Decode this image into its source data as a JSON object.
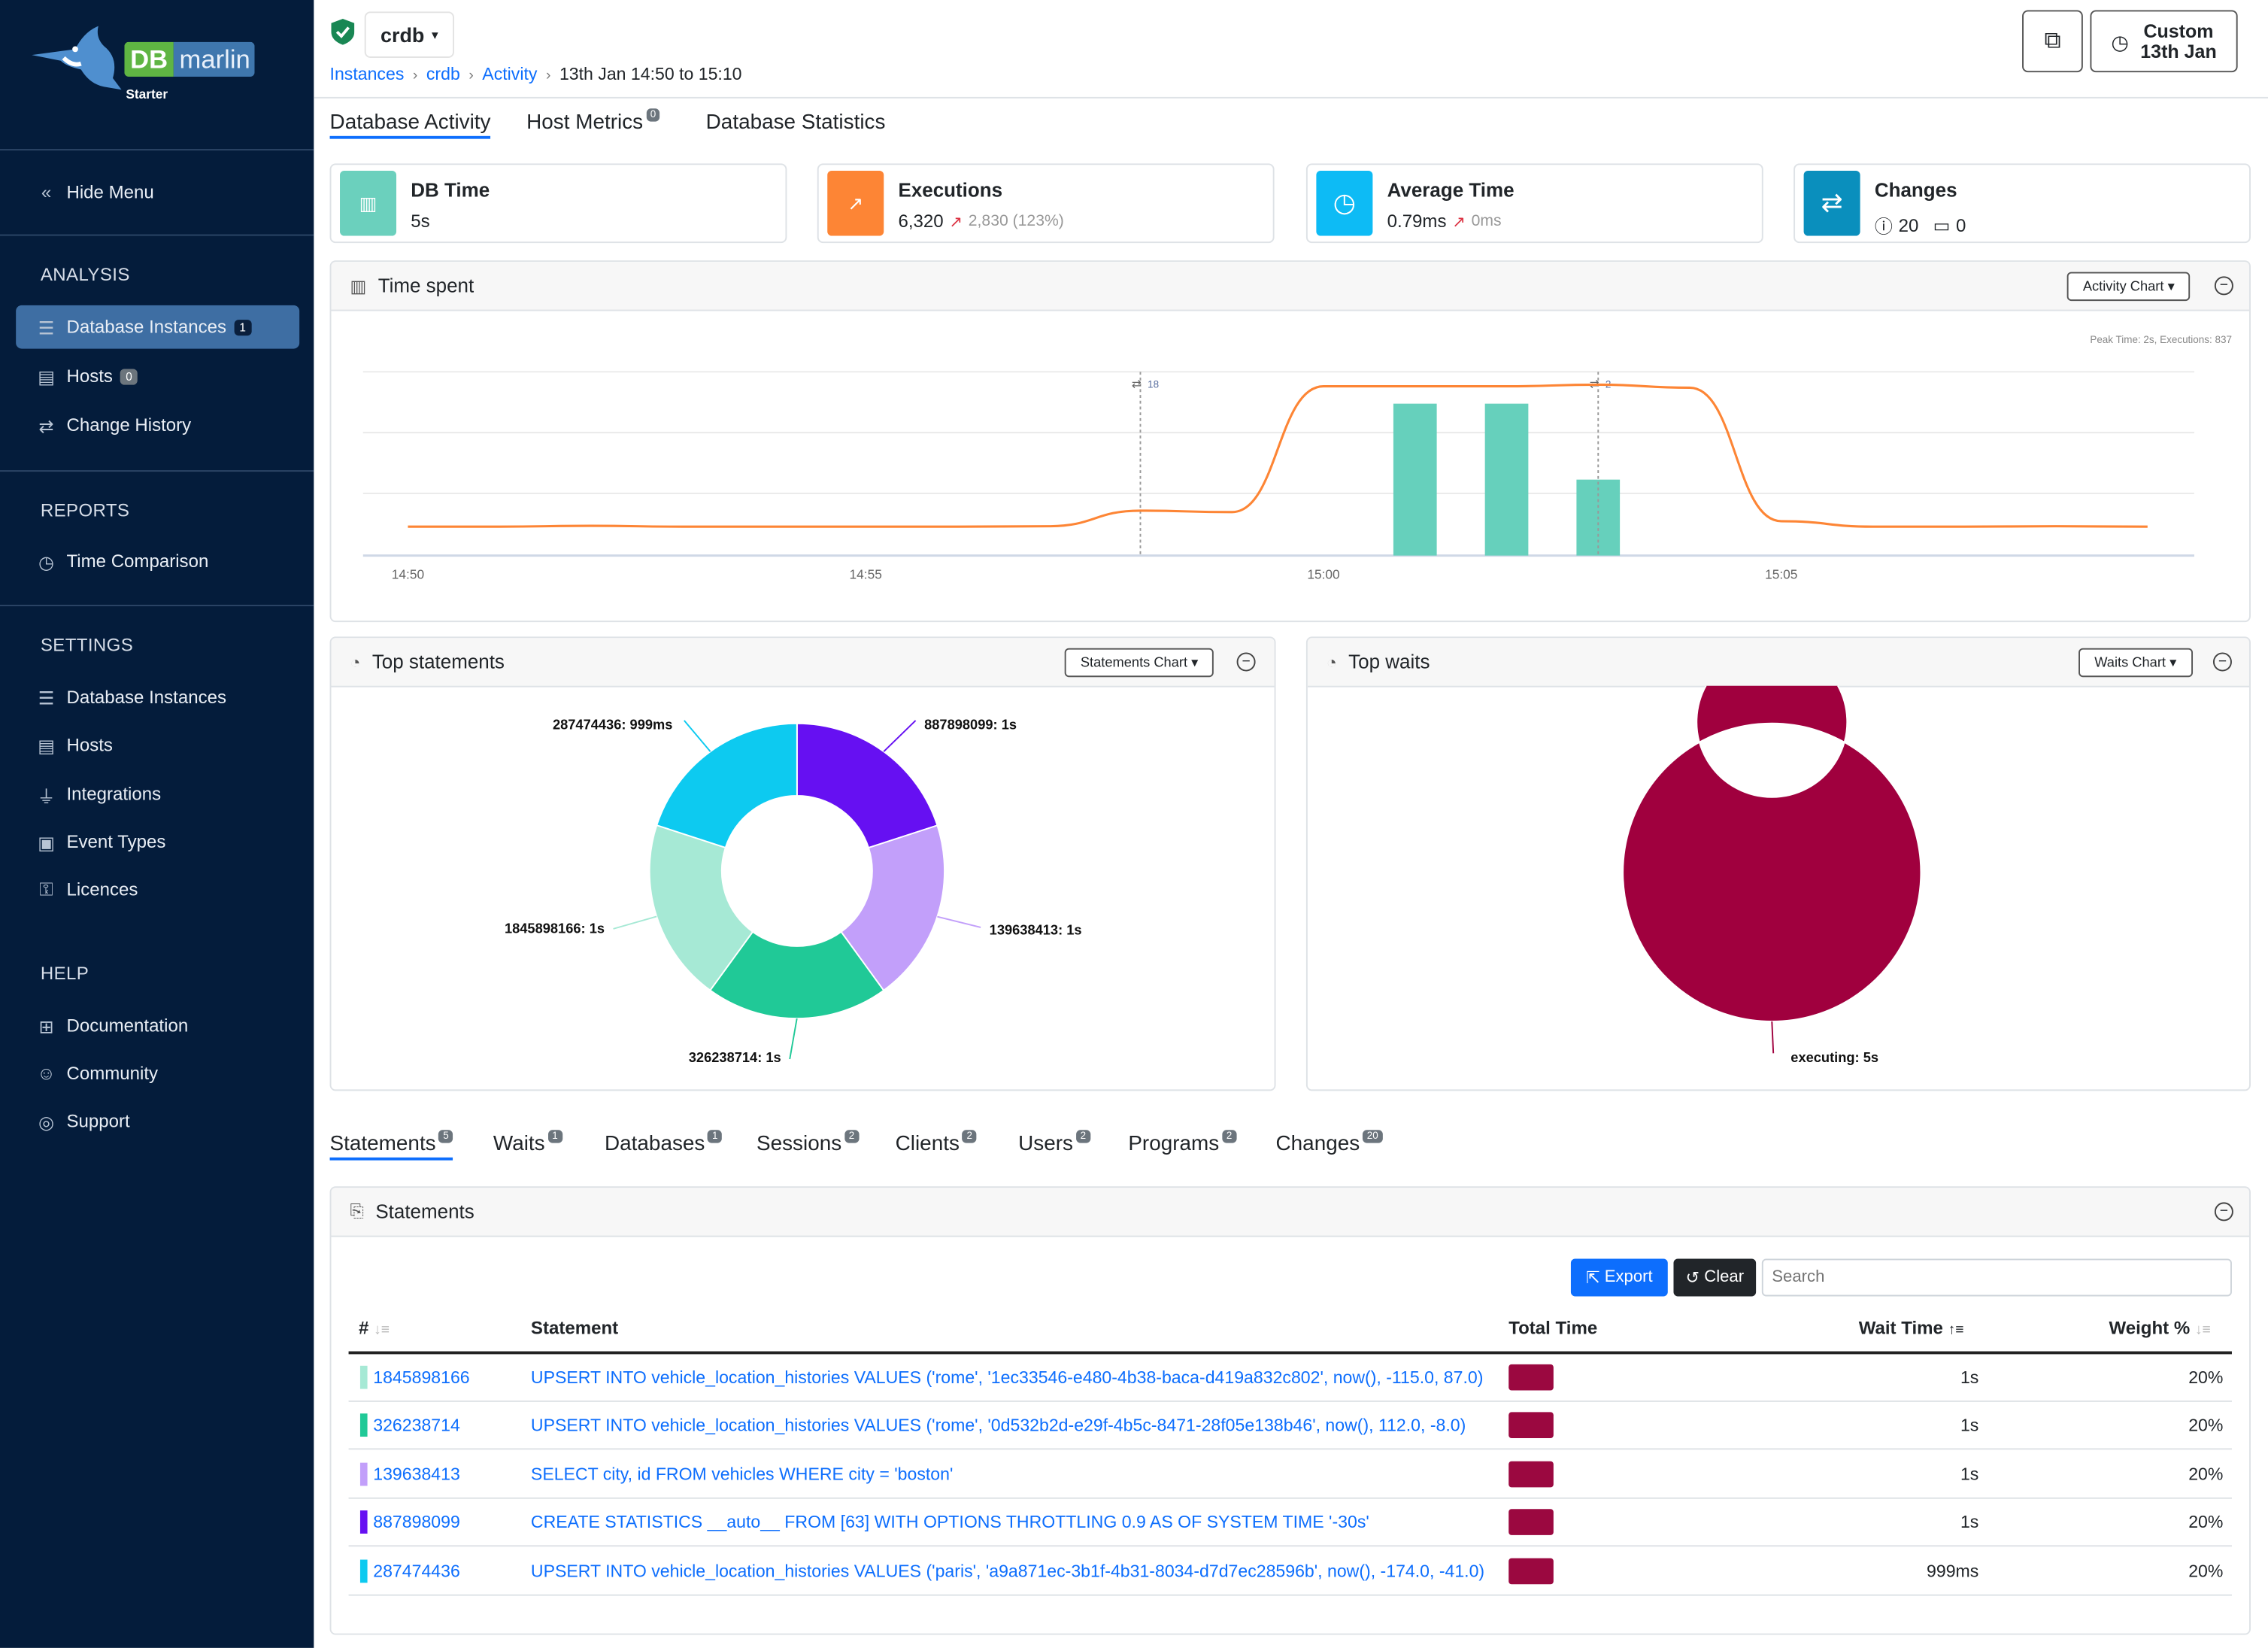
{
  "app": {
    "logo_left": "DB",
    "logo_right": "marlin",
    "edition": "Starter"
  },
  "sidebar": {
    "hide_menu": "Hide Menu",
    "sections": [
      {
        "title": "ANALYSIS",
        "items": [
          {
            "label": "Database Instances",
            "icon": "database-icon",
            "badge": "1",
            "active": true
          },
          {
            "label": "Hosts",
            "icon": "server-icon",
            "badge": "0"
          },
          {
            "label": "Change History",
            "icon": "arrows-exchange-icon"
          }
        ]
      },
      {
        "title": "REPORTS",
        "items": [
          {
            "label": "Time Comparison",
            "icon": "stopwatch-icon"
          }
        ]
      },
      {
        "title": "SETTINGS",
        "items": [
          {
            "label": "Database Instances",
            "icon": "database-icon"
          },
          {
            "label": "Hosts",
            "icon": "server-icon"
          },
          {
            "label": "Integrations",
            "icon": "plug-icon"
          },
          {
            "label": "Event Types",
            "icon": "event-icon"
          },
          {
            "label": "Licences",
            "icon": "key-icon"
          }
        ]
      },
      {
        "title": "HELP",
        "items": [
          {
            "label": "Documentation",
            "icon": "book-icon"
          },
          {
            "label": "Community",
            "icon": "people-icon"
          },
          {
            "label": "Support",
            "icon": "globe-icon"
          }
        ]
      }
    ]
  },
  "header": {
    "instance": "crdb",
    "breadcrumb": [
      "Instances",
      "crdb",
      "Activity"
    ],
    "breadcrumb_current": "13th Jan 14:50 to 15:10",
    "time_button": {
      "line1": "Custom",
      "line2": "13th Jan"
    }
  },
  "main_tabs": [
    {
      "label": "Database Activity",
      "active": true
    },
    {
      "label": "Host Metrics",
      "badge": "0"
    },
    {
      "label": "Database Statistics"
    }
  ],
  "kpis": {
    "db_time": {
      "title": "DB Time",
      "value": "5s",
      "color": "#6bd0bd"
    },
    "executions": {
      "title": "Executions",
      "value": "6,320",
      "delta": "2,830 (123%)",
      "color": "#fd8535"
    },
    "average_time": {
      "title": "Average Time",
      "value": "0.79ms",
      "delta": "0ms",
      "color": "#0dbbf5"
    },
    "changes": {
      "title": "Changes",
      "info_count": "20",
      "calendar_count": "0",
      "color": "#0a8fbd"
    }
  },
  "time_spent": {
    "title": "Time spent",
    "dropdown": "Activity Chart",
    "peak_note": "Peak Time: 2s, Executions: 837"
  },
  "chart_data": [
    {
      "type": "bar+line",
      "x_ticks": [
        "14:50",
        "14:55",
        "15:00",
        "15:05"
      ],
      "grid": true,
      "line_series": {
        "color": "#fd8535",
        "points": [
          [
            "14:50",
            143
          ],
          [
            "14:51",
            143
          ],
          [
            "14:52",
            147
          ],
          [
            "14:53",
            143
          ],
          [
            "14:54",
            143
          ],
          [
            "14:55",
            143
          ],
          [
            "14:56",
            143
          ],
          [
            "14:57",
            145
          ],
          [
            "14:58",
            222
          ],
          [
            "14:59",
            215
          ],
          [
            "15:00",
            837
          ],
          [
            "15:01",
            837
          ],
          [
            "15:02",
            837
          ],
          [
            "15:03",
            845
          ],
          [
            "15:04",
            830
          ],
          [
            "15:05",
            170
          ],
          [
            "15:06",
            143
          ],
          [
            "15:07",
            143
          ],
          [
            "15:08",
            145
          ],
          [
            "15:09",
            143
          ]
        ]
      },
      "bar_series": {
        "color": "#66d0bc",
        "points": [
          [
            "15:01",
            2
          ],
          [
            "15:02",
            2
          ],
          [
            "15:03",
            1
          ]
        ]
      },
      "change_markers": [
        {
          "time": "14:58",
          "count": "18"
        },
        {
          "time": "15:03",
          "count": "2"
        }
      ]
    },
    {
      "type": "pie",
      "donut": true,
      "title": "Top statements",
      "dropdown": "Statements Chart",
      "slices": [
        {
          "label": "887898099: 1s",
          "value": 1,
          "color": "#6610f2"
        },
        {
          "label": "139638413: 1s",
          "value": 1,
          "color": "#c29ffa"
        },
        {
          "label": "326238714: 1s",
          "value": 1,
          "color": "#20c997"
        },
        {
          "label": "1845898166: 1s",
          "value": 1,
          "color": "#a6e9d5"
        },
        {
          "label": "287474436: 999ms",
          "value": 0.999,
          "color": "#0dcaf0"
        }
      ]
    },
    {
      "type": "pie",
      "donut": true,
      "title": "Top waits",
      "dropdown": "Waits Chart",
      "slices": [
        {
          "label": "executing: 5s",
          "value": 5,
          "color": "#a0003e"
        }
      ]
    }
  ],
  "bottom_tabs": [
    {
      "label": "Statements",
      "badge": "5",
      "active": true
    },
    {
      "label": "Waits",
      "badge": "1"
    },
    {
      "label": "Databases",
      "badge": "1"
    },
    {
      "label": "Sessions",
      "badge": "2"
    },
    {
      "label": "Clients",
      "badge": "2"
    },
    {
      "label": "Users",
      "badge": "2"
    },
    {
      "label": "Programs",
      "badge": "2"
    },
    {
      "label": "Changes",
      "badge": "20"
    }
  ],
  "statements": {
    "title": "Statements",
    "export": "Export",
    "clear": "Clear",
    "search_placeholder": "Search",
    "columns": [
      "#",
      "Statement",
      "Total Time",
      "Wait Time",
      "Weight %"
    ],
    "rows": [
      {
        "id": "1845898166",
        "statement": "UPSERT INTO vehicle_location_histories VALUES ('rome', '1ec33546-e480-4b38-baca-d419a832c802', now(), -115.0, 87.0)",
        "total_time": 1,
        "wait_time": "1s",
        "weight": "20%",
        "color": "#a6e9d5"
      },
      {
        "id": "326238714",
        "statement": "UPSERT INTO vehicle_location_histories VALUES ('rome', '0d532b2d-e29f-4b5c-8471-28f05e138b46', now(), 112.0, -8.0)",
        "total_time": 1,
        "wait_time": "1s",
        "weight": "20%",
        "color": "#20c997"
      },
      {
        "id": "139638413",
        "statement": "SELECT city, id FROM vehicles WHERE city = 'boston'",
        "total_time": 1,
        "wait_time": "1s",
        "weight": "20%",
        "color": "#c29ffa"
      },
      {
        "id": "887898099",
        "statement": "CREATE STATISTICS __auto__ FROM [63] WITH OPTIONS THROTTLING 0.9 AS OF SYSTEM TIME '-30s'",
        "total_time": 1,
        "wait_time": "1s",
        "weight": "20%",
        "color": "#6610f2"
      },
      {
        "id": "287474436",
        "statement": "UPSERT INTO vehicle_location_histories VALUES ('paris', 'a9a871ec-3b1f-4b31-8034-d7d7ec28596b', now(), -174.0, -41.0)",
        "total_time": 0.999,
        "wait_time": "999ms",
        "weight": "20%",
        "color": "#0dcaf0"
      }
    ]
  }
}
